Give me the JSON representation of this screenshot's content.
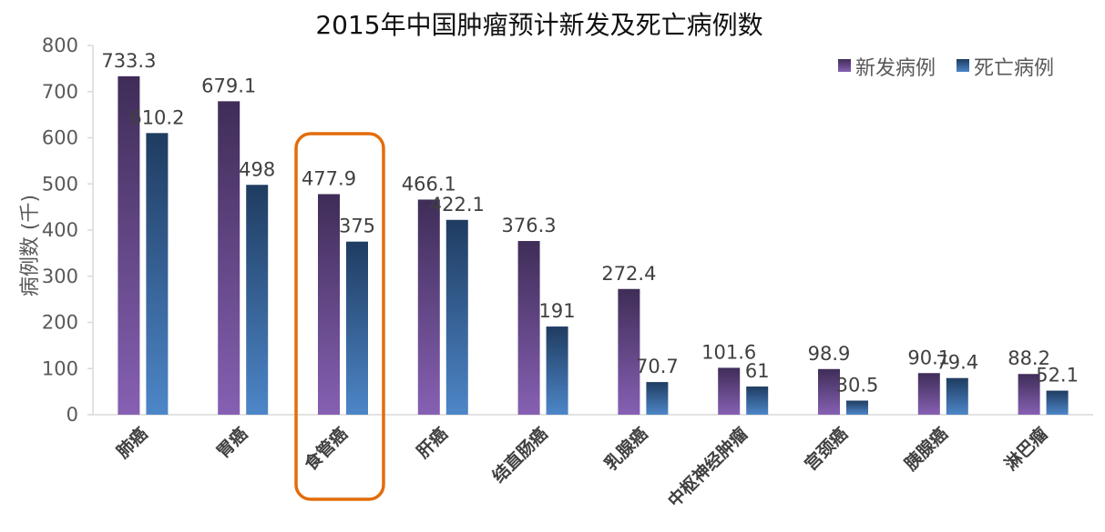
{
  "chart_data": {
    "type": "bar",
    "title": "2015年中国肿瘤预计新发及死亡病例数",
    "ylabel": "病例数 (千)",
    "xlabel": "",
    "ylim": [
      0,
      800
    ],
    "yticks": [
      "0",
      "100",
      "200",
      "300",
      "400",
      "500",
      "600",
      "700",
      "800"
    ],
    "categories": [
      "肺癌",
      "胃癌",
      "食管癌",
      "肝癌",
      "结直肠癌",
      "乳腺癌",
      "中枢神经肿瘤",
      "宫颈癌",
      "胰腺癌",
      "淋巴瘤"
    ],
    "series": [
      {
        "name": "新发病例",
        "values": [
          733.3,
          679.1,
          477.9,
          466.1,
          376.3,
          272.4,
          101.6,
          98.9,
          90.1,
          88.2
        ],
        "labels": [
          "733.3",
          "679.1",
          "477.9",
          "466.1",
          "376.3",
          "272.4",
          "101.6",
          "98.9",
          "90.1",
          "88.2"
        ],
        "color_top": "#3f2d58",
        "color_bottom": "#8660b3"
      },
      {
        "name": "死亡病例",
        "values": [
          610.2,
          498,
          375,
          422.1,
          191,
          70.7,
          61,
          30.5,
          79.4,
          52.1
        ],
        "labels": [
          "610.2",
          "498",
          "375",
          "422.1",
          "191",
          "70.7",
          "61",
          "30.5",
          "79.4",
          "52.1"
        ],
        "color_top": "#1f3c61",
        "color_bottom": "#4d86c8"
      }
    ],
    "legend_position": "top-right",
    "grid": false,
    "highlight": {
      "category": "食管癌",
      "color": "#e46c0a"
    }
  }
}
